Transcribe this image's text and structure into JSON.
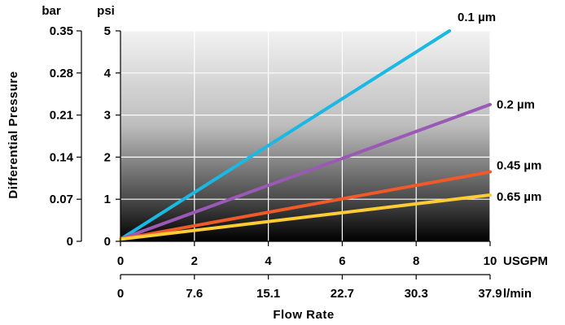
{
  "chart_data": {
    "type": "line",
    "title": "",
    "xlabel": "Flow Rate",
    "ylabel": "Differential Pressure",
    "primary_x_axis": {
      "unit": "USGPM",
      "ticks": [
        0,
        2,
        4,
        6,
        8,
        10
      ],
      "tick_labels": [
        "0",
        "2",
        "4",
        "6",
        "8",
        "10"
      ],
      "range": [
        0,
        10
      ]
    },
    "secondary_x_axis": {
      "unit": "l/min",
      "tick_labels": [
        "0",
        "7.6",
        "15.1",
        "22.7",
        "30.3",
        "37.9"
      ]
    },
    "primary_y_axis": {
      "unit": "psi",
      "ticks": [
        0,
        1,
        2,
        3,
        4,
        5
      ],
      "tick_labels": [
        "0",
        "1",
        "2",
        "3",
        "4",
        "5"
      ],
      "range": [
        0,
        5
      ]
    },
    "secondary_y_axis": {
      "unit": "bar",
      "tick_labels": [
        "0",
        "0.07",
        "0.14",
        "0.21",
        "0.28",
        "0.35"
      ]
    },
    "grid": true,
    "background": "vertical gradient from light gray at top to black at bottom",
    "series": [
      {
        "name": "0.1 µm",
        "color": "#1ab8e3",
        "x": [
          0,
          8.9
        ],
        "y": [
          0.05,
          5.0
        ]
      },
      {
        "name": "0.2 µm",
        "color": "#9b59b6",
        "x": [
          0,
          10
        ],
        "y": [
          0.05,
          3.25
        ]
      },
      {
        "name": "0.45 µm",
        "color": "#f05a28",
        "x": [
          0,
          10
        ],
        "y": [
          0.05,
          1.65
        ]
      },
      {
        "name": "0.65 µm",
        "color": "#ffcc33",
        "x": [
          0,
          10
        ],
        "y": [
          0.05,
          1.1
        ]
      }
    ]
  }
}
